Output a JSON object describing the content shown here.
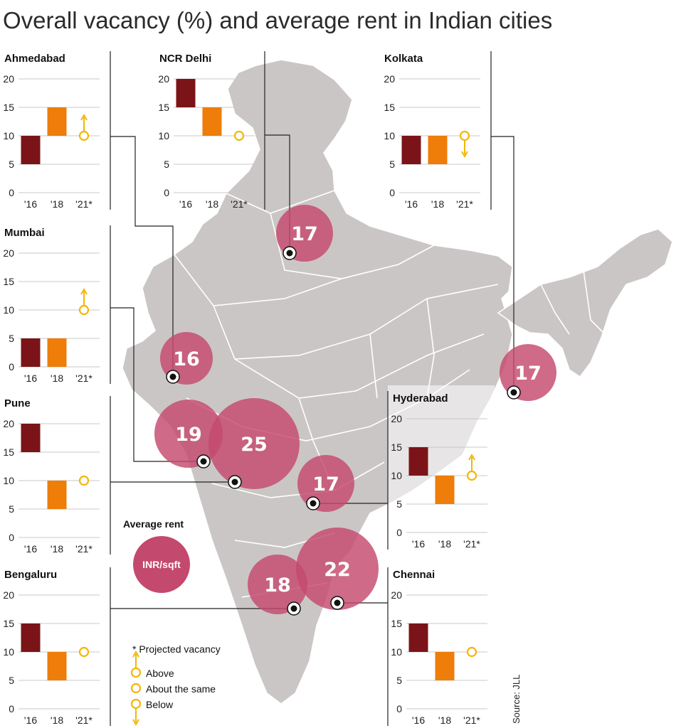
{
  "title": "Overall vacancy (%) and average rent in Indian cities",
  "source": "Source: JLL",
  "colors": {
    "bar_2016": "#7b1418",
    "bar_2018": "#ee7d0a",
    "projection": "#f2b705",
    "bubble": "#c4496e",
    "map_fill": "#cbc6c6",
    "map_border": "#ffffff"
  },
  "legend": {
    "rent_title": "Average rent",
    "rent_unit": "INR/sqft",
    "projected_title": "* Projected vacancy",
    "above": "Above",
    "same": "About the same",
    "below": "Below"
  },
  "chart_data": [
    {
      "type": "bar",
      "city": "Ahmedabad",
      "categories": [
        "'16",
        "'18",
        "'21*"
      ],
      "ylim": [
        0,
        20
      ],
      "yticks": [
        "0",
        "5",
        "10",
        "15",
        "20"
      ],
      "bars": [
        [
          5,
          10
        ],
        [
          10,
          15
        ]
      ],
      "projection": {
        "value": 10,
        "trend": "above"
      },
      "average_rent": 16
    },
    {
      "type": "bar",
      "city": "NCR Delhi",
      "categories": [
        "'16",
        "'18",
        "'21*"
      ],
      "ylim": [
        0,
        20
      ],
      "yticks": [
        "0",
        "5",
        "10",
        "15",
        "20"
      ],
      "bars": [
        [
          15,
          20
        ],
        [
          10,
          15
        ]
      ],
      "projection": {
        "value": 10,
        "trend": "same"
      },
      "average_rent": 17
    },
    {
      "type": "bar",
      "city": "Kolkata",
      "categories": [
        "'16",
        "'18",
        "'21*"
      ],
      "ylim": [
        0,
        20
      ],
      "yticks": [
        "0",
        "5",
        "10",
        "15",
        "20"
      ],
      "bars": [
        [
          5,
          10
        ],
        [
          5,
          10
        ]
      ],
      "projection": {
        "value": 10,
        "trend": "below"
      },
      "average_rent": 17
    },
    {
      "type": "bar",
      "city": "Mumbai",
      "categories": [
        "'16",
        "'18",
        "'21*"
      ],
      "ylim": [
        0,
        20
      ],
      "yticks": [
        "0",
        "5",
        "10",
        "15",
        "20"
      ],
      "bars": [
        [
          0,
          5
        ],
        [
          0,
          5
        ]
      ],
      "projection": {
        "value": 10,
        "trend": "above"
      },
      "average_rent": 19
    },
    {
      "type": "bar",
      "city": "Pune",
      "categories": [
        "'16",
        "'18",
        "'21*"
      ],
      "ylim": [
        0,
        20
      ],
      "yticks": [
        "0",
        "5",
        "10",
        "15",
        "20"
      ],
      "bars": [
        [
          15,
          20
        ],
        [
          5,
          10
        ]
      ],
      "projection": {
        "value": 10,
        "trend": "same"
      },
      "average_rent": 25
    },
    {
      "type": "bar",
      "city": "Hyderabad",
      "categories": [
        "'16",
        "'18",
        "'21*"
      ],
      "ylim": [
        0,
        20
      ],
      "yticks": [
        "0",
        "5",
        "10",
        "15",
        "20"
      ],
      "bars": [
        [
          10,
          15
        ],
        [
          5,
          10
        ]
      ],
      "projection": {
        "value": 10,
        "trend": "above"
      },
      "average_rent": 17
    },
    {
      "type": "bar",
      "city": "Bengaluru",
      "categories": [
        "'16",
        "'18",
        "'21*"
      ],
      "ylim": [
        0,
        20
      ],
      "yticks": [
        "0",
        "5",
        "10",
        "15",
        "20"
      ],
      "bars": [
        [
          10,
          15
        ],
        [
          5,
          10
        ]
      ],
      "projection": {
        "value": 10,
        "trend": "same"
      },
      "average_rent": 18
    },
    {
      "type": "bar",
      "city": "Chennai",
      "categories": [
        "'16",
        "'18",
        "'21*"
      ],
      "ylim": [
        0,
        20
      ],
      "yticks": [
        "0",
        "5",
        "10",
        "15",
        "20"
      ],
      "bars": [
        [
          10,
          15
        ],
        [
          5,
          10
        ]
      ],
      "projection": {
        "value": 10,
        "trend": "same"
      },
      "average_rent": 22
    }
  ]
}
